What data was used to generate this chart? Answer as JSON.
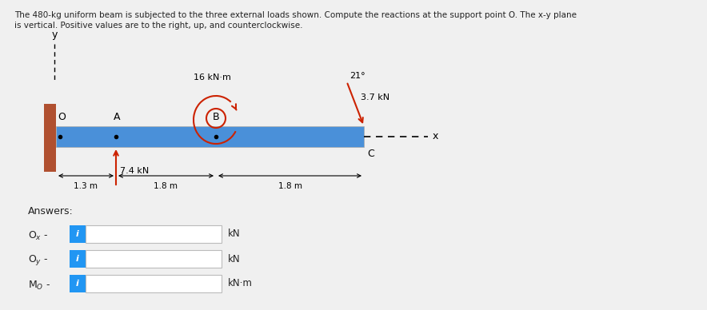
{
  "title_line1": "The 480-kg uniform beam is subjected to the three external loads shown. Compute the reactions at the support point O. The x-y plane",
  "title_line2": "is vertical. Positive values are to the right, up, and counterclockwise.",
  "beam_color": "#4a90d9",
  "wall_color": "#b05030",
  "moment_label": "16 kN·m",
  "force_37_label": "3.7 kN",
  "force_74_label": "7.4 kN",
  "angle_label": "21°",
  "dist_13": "1.3 m",
  "dist_18a": "1.8 m",
  "dist_18b": "1.8 m",
  "label_O": "O",
  "label_A": "A",
  "label_B": "B",
  "label_C": "C",
  "label_x": "x",
  "label_y": "y",
  "answers_label": "Answers:",
  "Ox_label": "O$_x$ -",
  "Oy_label": "O$_y$ -",
  "Mo_label": "M$_O$ -",
  "unit_kN": "kN",
  "unit_kNm": "kN·m",
  "info_btn_color": "#2196F3",
  "bg_color": "#f0f0f0",
  "text_color": "#222222",
  "input_border_color": "#bbbbbb",
  "red_color": "#cc2200"
}
